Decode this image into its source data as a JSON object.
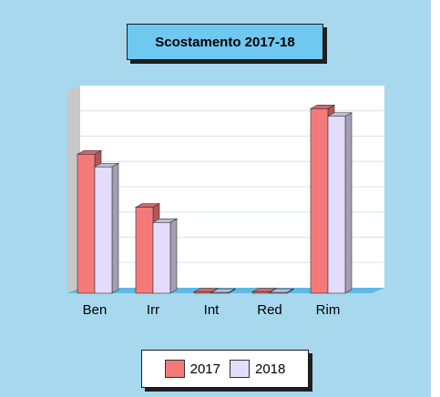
{
  "chart_data": {
    "type": "bar",
    "title": "Scostamento 2017-18",
    "categories": [
      "Ben",
      "Irr",
      "Int",
      "Red",
      "Rim"
    ],
    "series": [
      {
        "name": "2017",
        "values": [
          55,
          34,
          0.5,
          0.5,
          73
        ]
      },
      {
        "name": "2018",
        "values": [
          50,
          28,
          0.3,
          0.3,
          70
        ]
      }
    ],
    "ylim": [
      0,
      80
    ],
    "grid": true,
    "legend_position": "bottom",
    "colors": {
      "series_2017": "#f47a7a",
      "series_2018": "#e4dcfb",
      "background": "#a8d8ee",
      "floor": "#5fb9e4",
      "plot_area": "#ffffff",
      "grid": "#d4e4ec"
    }
  }
}
